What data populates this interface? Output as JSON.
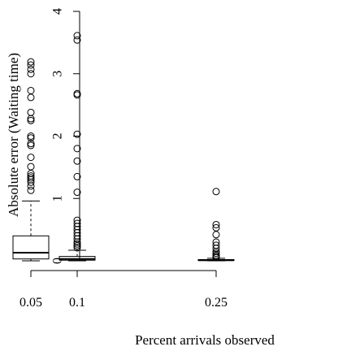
{
  "chart_data": {
    "type": "boxplot",
    "xlabel": "Percent arrivals observed",
    "ylabel": "Absolute error (Waiting time)",
    "x_ticks": [
      "0.05",
      "0.1",
      "0.25"
    ],
    "x_positions": [
      0.05,
      0.1,
      0.25
    ],
    "y_ticks": [
      0,
      1,
      2,
      3,
      4
    ],
    "ylim": [
      0,
      4
    ],
    "grid": false,
    "boxes": [
      {
        "category": "0.05",
        "x": 0.05,
        "min": 0.0,
        "q1": 0.03,
        "median": 0.13,
        "q3": 0.4,
        "max": 0.96,
        "outliers": [
          3.19,
          3.14,
          3.07,
          3.0,
          2.73,
          2.62,
          2.38,
          2.28,
          2.25,
          2.0,
          1.97,
          1.88,
          1.85,
          1.66,
          1.51,
          1.4,
          1.36,
          1.33,
          1.3,
          1.26,
          1.2,
          1.13
        ]
      },
      {
        "category": "0.1",
        "x": 0.1,
        "min": 0.0,
        "q1": 0.01,
        "median": 0.03,
        "q3": 0.07,
        "max": 0.17,
        "outliers": [
          3.61,
          3.54,
          2.68,
          2.66,
          2.03,
          1.8,
          1.6,
          1.35,
          1.1,
          0.65,
          0.6,
          0.55,
          0.5,
          0.45,
          0.4,
          0.35,
          0.3,
          0.27,
          0.24,
          0.21
        ]
      },
      {
        "category": "0.25",
        "x": 0.25,
        "min": 0.0,
        "q1": 0.005,
        "median": 0.01,
        "q3": 0.02,
        "max": 0.04,
        "outliers": [
          1.11,
          0.58,
          0.53,
          0.42,
          0.3,
          0.25,
          0.2,
          0.15,
          0.12,
          0.09,
          0.07,
          0.05
        ]
      }
    ]
  }
}
